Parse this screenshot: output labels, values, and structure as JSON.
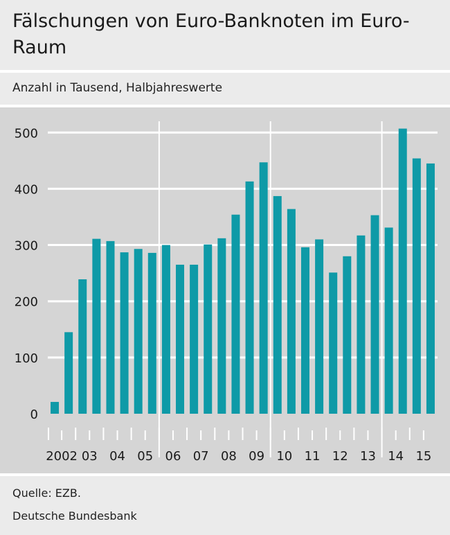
{
  "header": {
    "title": "Fälschungen von Euro-Banknoten im Euro-Raum",
    "subtitle": "Anzahl in Tausend, Halbjahreswerte"
  },
  "footer": {
    "source": "Quelle: EZB.",
    "publisher": "Deutsche Bundesbank"
  },
  "colors": {
    "bar": "#0e9aa7",
    "plot_bg": "#d5d5d5",
    "grid": "#ffffff"
  },
  "chart_data": {
    "type": "bar",
    "title": "Fälschungen von Euro-Banknoten im Euro-Raum",
    "ylabel": "Anzahl in Tausend, Halbjahreswerte",
    "ylim": [
      0,
      530
    ],
    "yticks": [
      0,
      100,
      200,
      300,
      400,
      500
    ],
    "grid": true,
    "year_labels": [
      "2002",
      "03",
      "04",
      "05",
      "06",
      "07",
      "08",
      "09",
      "10",
      "11",
      "12",
      "13",
      "14",
      "15"
    ],
    "categories": [
      "2002 H1",
      "2002 H2",
      "2003 H1",
      "2003 H2",
      "2004 H1",
      "2004 H2",
      "2005 H1",
      "2005 H2",
      "2006 H1",
      "2006 H2",
      "2007 H1",
      "2007 H2",
      "2008 H1",
      "2008 H2",
      "2009 H1",
      "2009 H2",
      "2010 H1",
      "2010 H2",
      "2011 H1",
      "2011 H2",
      "2012 H1",
      "2012 H2",
      "2013 H1",
      "2013 H2",
      "2014 H1",
      "2014 H2",
      "2015 H1",
      "2015 H2"
    ],
    "values": [
      21,
      145,
      239,
      311,
      307,
      287,
      293,
      286,
      300,
      265,
      265,
      301,
      312,
      354,
      413,
      447,
      387,
      364,
      296,
      310,
      251,
      280,
      317,
      353,
      331,
      507,
      454,
      445
    ]
  }
}
